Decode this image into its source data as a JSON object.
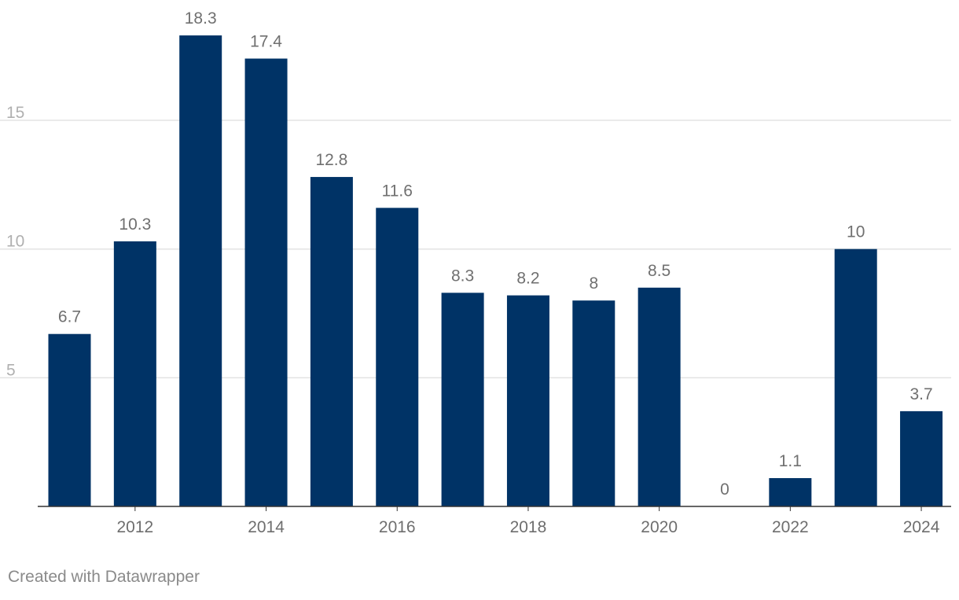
{
  "chart_data": {
    "type": "bar",
    "title": "",
    "xlabel": "",
    "ylabel": "",
    "categories": [
      "2011",
      "2012",
      "2013",
      "2014",
      "2015",
      "2016",
      "2017",
      "2018",
      "2019",
      "2020",
      "2021",
      "2022",
      "2023",
      "2024"
    ],
    "values": [
      6.7,
      10.3,
      18.3,
      17.4,
      12.8,
      11.6,
      8.3,
      8.2,
      8,
      8.5,
      0,
      1.1,
      10,
      3.7
    ],
    "data_labels": [
      "6.7",
      "10.3",
      "18.3",
      "17.4",
      "12.8",
      "11.6",
      "8.3",
      "8.2",
      "8",
      "8.5",
      "0",
      "1.1",
      "10",
      "3.7"
    ],
    "x_tick_labels": [
      "2012",
      "2014",
      "2016",
      "2018",
      "2020",
      "2022",
      "2024"
    ],
    "y_ticks": [
      5,
      10,
      15
    ],
    "ylim": [
      0,
      20
    ],
    "grid": true,
    "legend": "none",
    "colors": {
      "bar": "#003366",
      "grid": "#e3e3e3",
      "axis": "#333333",
      "tick_label": "#b0b0b0",
      "x_tick_label": "#6e6e6e",
      "data_label": "#707070"
    }
  },
  "footer": {
    "credit": "Created with Datawrapper"
  }
}
